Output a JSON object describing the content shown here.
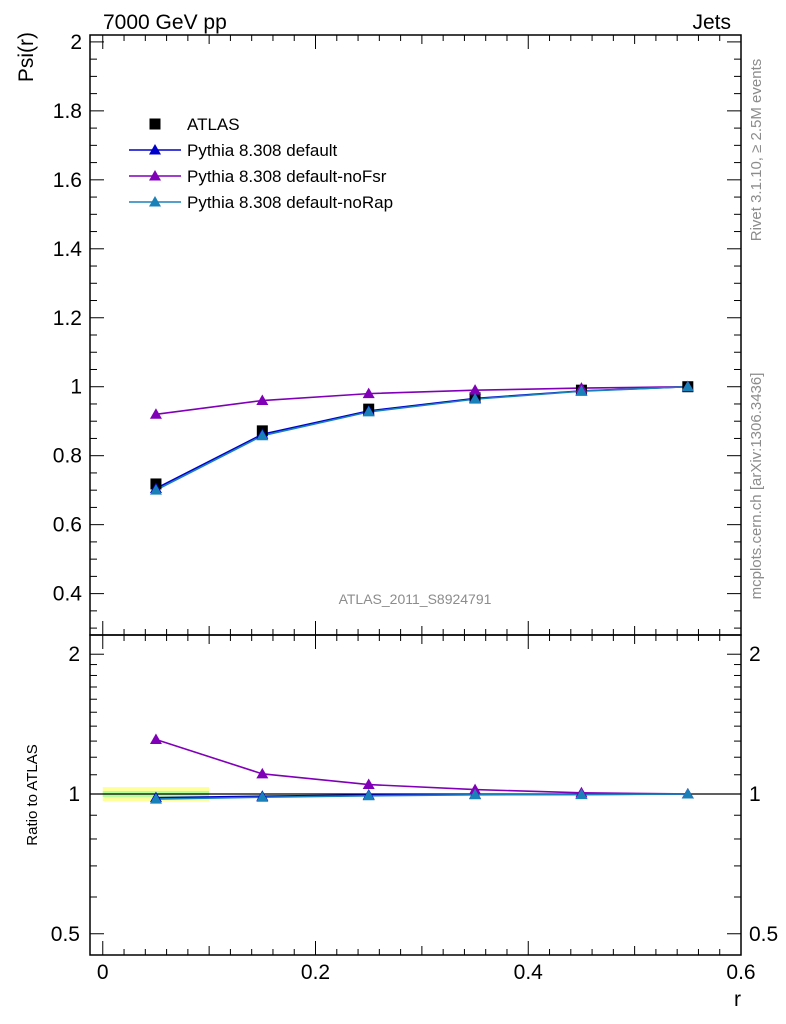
{
  "header": {
    "process": "7000 GeV pp",
    "category": "Jets"
  },
  "side_labels": {
    "rivet": "Rivet 3.1.10, ≥ 2.5M events",
    "source": "mcplots.cern.ch [arXiv:1306.3436]"
  },
  "analysis_label": "ATLAS_2011_S8924791",
  "colors": {
    "atlas": "#000000",
    "pythia_default": "#0000cc",
    "pythia_nofsr": "#8000b8",
    "pythia_norap": "#1a80b8",
    "band_outer": "#ffff99",
    "band_inner": "#b3ff99"
  },
  "chart_data": [
    {
      "type": "line",
      "panel": "main",
      "ylabel": "Psi(r)",
      "xlim": [
        -0.012,
        0.6
      ],
      "ylim": [
        0.28,
        2.02
      ],
      "yticks": [
        {
          "value": 0.4,
          "label": "0.4"
        },
        {
          "value": 0.6,
          "label": "0.6"
        },
        {
          "value": 0.8,
          "label": "0.8"
        },
        {
          "value": 1.0,
          "label": "1"
        },
        {
          "value": 1.2,
          "label": "1.2"
        },
        {
          "value": 1.4,
          "label": "1.4"
        },
        {
          "value": 1.6,
          "label": "1.6"
        },
        {
          "value": 1.8,
          "label": "1.8"
        },
        {
          "value": 2.0,
          "label": "2"
        }
      ],
      "legend_position": "top-left",
      "x": [
        0.05,
        0.15,
        0.25,
        0.35,
        0.45,
        0.55
      ],
      "series": [
        {
          "name": "ATLAS",
          "marker": "square",
          "color": "#000000",
          "values": [
            0.718,
            0.872,
            0.935,
            0.968,
            0.99,
            1.0
          ]
        },
        {
          "name": "Pythia 8.308 default",
          "marker": "triangle",
          "color": "#0000cc",
          "values": [
            0.705,
            0.862,
            0.93,
            0.966,
            0.988,
            1.0
          ]
        },
        {
          "name": "Pythia 8.308 default-noFsr",
          "marker": "triangle",
          "color": "#8000b8",
          "values": [
            0.92,
            0.96,
            0.98,
            0.99,
            0.996,
            1.0
          ]
        },
        {
          "name": "Pythia 8.308 default-noRap",
          "marker": "triangle",
          "color": "#1a80b8",
          "values": [
            0.7,
            0.858,
            0.927,
            0.964,
            0.987,
            1.0
          ]
        }
      ]
    },
    {
      "type": "line",
      "panel": "ratio",
      "xlabel": "r",
      "ylabel": "Ratio to ATLAS",
      "xlim": [
        -0.012,
        0.6
      ],
      "ylim": [
        0.45,
        2.2
      ],
      "log_y": true,
      "xticks": [
        {
          "value": 0.0,
          "label": "0"
        },
        {
          "value": 0.2,
          "label": "0.2"
        },
        {
          "value": 0.4,
          "label": "0.4"
        },
        {
          "value": 0.6,
          "label": "0.6"
        }
      ],
      "yticks": [
        {
          "value": 0.5,
          "label": "0.5"
        },
        {
          "value": 1.0,
          "label": "1"
        },
        {
          "value": 2.0,
          "label": "2"
        }
      ],
      "band": {
        "x_from": 0.0,
        "x_to": 0.1,
        "outer": [
          0.965,
          1.035
        ],
        "inner": [
          0.985,
          1.015
        ]
      },
      "x": [
        0.05,
        0.15,
        0.25,
        0.35,
        0.45,
        0.55
      ],
      "series": [
        {
          "name": "Pythia 8.308 default",
          "color": "#0000cc",
          "values": [
            0.982,
            0.989,
            0.995,
            0.998,
            0.998,
            1.0
          ]
        },
        {
          "name": "Pythia 8.308 default-noFsr",
          "color": "#8000b8",
          "values": [
            1.31,
            1.105,
            1.048,
            1.022,
            1.006,
            1.0
          ]
        },
        {
          "name": "Pythia 8.308 default-noRap",
          "color": "#1a80b8",
          "values": [
            0.975,
            0.984,
            0.991,
            0.996,
            0.997,
            1.0
          ]
        }
      ]
    }
  ]
}
